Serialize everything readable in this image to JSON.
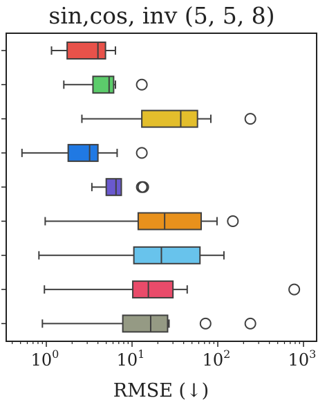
{
  "chart_data": {
    "type": "boxplot",
    "orientation": "horizontal",
    "title": "sin,cos, inv (5, 5, 8)",
    "xlabel": "RMSE (↓)",
    "ylabel": "",
    "xscale": "log",
    "xlim": [
      0.4,
      1000
    ],
    "xticks": [
      {
        "value": 1,
        "base": "10",
        "exp": "0"
      },
      {
        "value": 10,
        "base": "10",
        "exp": "1"
      },
      {
        "value": 100,
        "base": "10",
        "exp": "2"
      },
      {
        "value": 1000,
        "base": "10",
        "exp": "3"
      }
    ],
    "grid": false,
    "series": [
      {
        "color": "#e8524a",
        "whislo": 1.15,
        "q1": 1.75,
        "med": 4.0,
        "q3": 4.9,
        "whishi": 6.4,
        "fliers": []
      },
      {
        "color": "#5ccc6b",
        "whislo": 1.6,
        "q1": 3.5,
        "med": 5.4,
        "q3": 6.1,
        "whishi": 6.4,
        "fliers": [
          13
        ]
      },
      {
        "color": "#e3be2c",
        "whislo": 2.6,
        "q1": 13,
        "med": 37,
        "q3": 58,
        "whishi": 83,
        "fliers": [
          240
        ]
      },
      {
        "color": "#2079e3",
        "whislo": 0.52,
        "q1": 1.8,
        "med": 3.2,
        "q3": 4.0,
        "whishi": 6.7,
        "fliers": [
          13
        ]
      },
      {
        "color": "#6a59cf",
        "whislo": 3.4,
        "q1": 5.0,
        "med": 6.5,
        "q3": 7.5,
        "whishi": 7.5,
        "fliers": [
          13,
          13.5
        ]
      },
      {
        "color": "#e8911c",
        "whislo": 0.97,
        "q1": 11.8,
        "med": 24,
        "q3": 64,
        "whishi": 98,
        "fliers": [
          150
        ]
      },
      {
        "color": "#68c3ec",
        "whislo": 0.82,
        "q1": 10.5,
        "med": 22,
        "q3": 62,
        "whishi": 118,
        "fliers": []
      },
      {
        "color": "#e94b6a",
        "whislo": 0.95,
        "q1": 10.2,
        "med": 15.5,
        "q3": 30,
        "whishi": 44,
        "fliers": [
          780
        ]
      },
      {
        "color": "#959a84",
        "whislo": 0.9,
        "q1": 7.8,
        "med": 16.5,
        "q3": 26,
        "whishi": 27,
        "fliers": [
          72,
          240
        ]
      }
    ]
  }
}
